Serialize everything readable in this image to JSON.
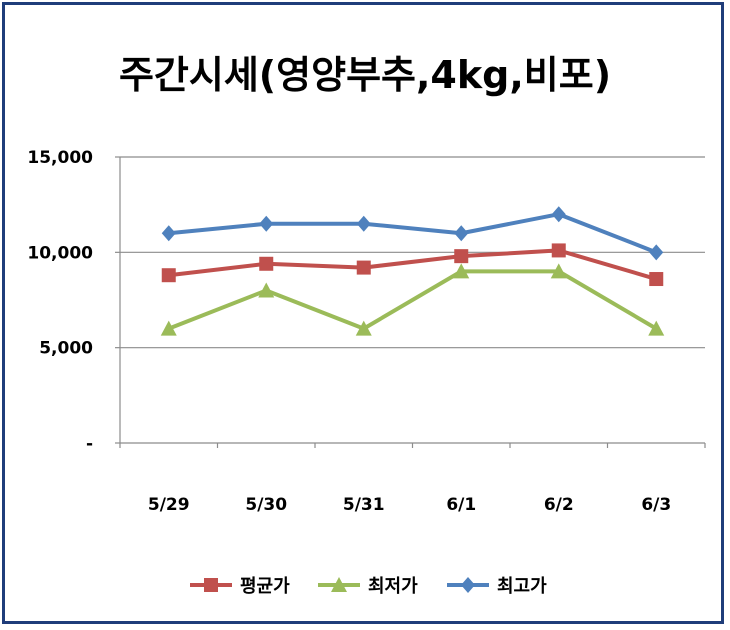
{
  "chart_data": {
    "type": "line",
    "title": "주간시세(영양부추,4kg,비포)",
    "categories": [
      "5/29",
      "5/30",
      "5/31",
      "6/1",
      "6/2",
      "6/3"
    ],
    "y_tick_labels": [
      "-",
      "5,000",
      "10,000",
      "15,000"
    ],
    "y_tick_values": [
      0,
      5000,
      10000,
      15000
    ],
    "ylim": [
      0,
      15000
    ],
    "grid": true,
    "legend_position": "bottom",
    "series": [
      {
        "name": "평균가",
        "color": "#C0504D",
        "marker": "square",
        "values": [
          8800,
          9400,
          9200,
          9800,
          10100,
          8600
        ]
      },
      {
        "name": "최저가",
        "color": "#9BBB59",
        "marker": "triangle",
        "values": [
          6000,
          8000,
          6000,
          9000,
          9000,
          6000
        ]
      },
      {
        "name": "최고가",
        "color": "#4F81BD",
        "marker": "diamond",
        "values": [
          11000,
          11500,
          11500,
          11000,
          12000,
          10000
        ]
      }
    ]
  }
}
